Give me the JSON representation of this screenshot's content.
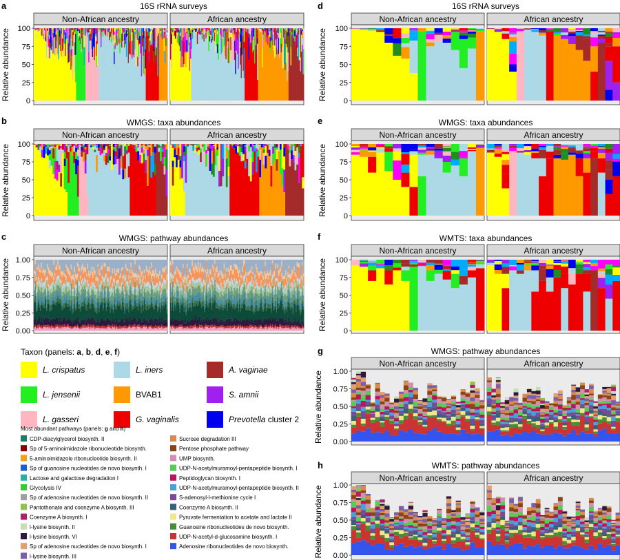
{
  "colors": {
    "L. crispatus": "#ffff00",
    "L. jensenii": "#22ee22",
    "L. gasseri": "#ffb6c1",
    "L. iners": "#add8e6",
    "BVAB1": "#ff9900",
    "G. vaginalis": "#ee0000",
    "A. vaginae": "#a52a2a",
    "S. amnii": "#a020f0",
    "Prevotella cluster 2": "#0000ee",
    "facet_bg": "#d9d9d9",
    "panel_bg": "#ebebeb",
    "grid": "#ffffff"
  },
  "chart_data": [
    {
      "id": "a",
      "type": "bar",
      "stacked": true,
      "letter": "a",
      "title": "16S rRNA surveys",
      "ylabel": "Relative abundance",
      "yticks": [
        "0",
        "25",
        "50",
        "75",
        "100"
      ],
      "ylim": [
        0,
        100
      ],
      "facets": [
        "Non-African ancestry",
        "African ancestry"
      ],
      "description": "One stacked bar per sample, sorted by dominant taxon",
      "segments": [
        {
          "facet": 0,
          "taxon": "L. crispatus",
          "samples": 45
        },
        {
          "facet": 0,
          "taxon": "L. jensenii",
          "samples": 10
        },
        {
          "facet": 0,
          "taxon": "L. gasseri",
          "samples": 14
        },
        {
          "facet": 0,
          "taxon": "L. iners",
          "samples": 50
        },
        {
          "facet": 0,
          "taxon": "G. vaginalis",
          "samples": 14
        },
        {
          "facet": 0,
          "taxon": "BVAB1",
          "samples": 9
        },
        {
          "facet": 1,
          "taxon": "L. crispatus",
          "samples": 22
        },
        {
          "facet": 1,
          "taxon": "L. iners",
          "samples": 56
        },
        {
          "facet": 1,
          "taxon": "G. vaginalis",
          "samples": 14
        },
        {
          "facet": 1,
          "taxon": "BVAB1",
          "samples": 32
        },
        {
          "facet": 1,
          "taxon": "A. vaginae",
          "samples": 16
        }
      ]
    },
    {
      "id": "b",
      "type": "bar",
      "stacked": true,
      "letter": "b",
      "title": "WMGS: taxa abundances",
      "ylabel": "Relative abundance",
      "yticks": [
        "0",
        "25",
        "50",
        "75",
        "100"
      ],
      "ylim": [
        0,
        100
      ],
      "facets": [
        "Non-African ancestry",
        "African ancestry"
      ],
      "segments": [
        {
          "facet": 0,
          "taxon": "L. crispatus",
          "samples": 18
        },
        {
          "facet": 0,
          "taxon": "L. jensenii",
          "samples": 6
        },
        {
          "facet": 0,
          "taxon": "L. gasseri",
          "samples": 5
        },
        {
          "facet": 0,
          "taxon": "L. iners",
          "samples": 22
        },
        {
          "facet": 0,
          "taxon": "G. vaginalis",
          "samples": 14
        },
        {
          "facet": 0,
          "taxon": "A. vaginae",
          "samples": 6
        },
        {
          "facet": 1,
          "taxon": "L. crispatus",
          "samples": 8
        },
        {
          "facet": 1,
          "taxon": "L. iners",
          "samples": 24
        },
        {
          "facet": 1,
          "taxon": "G. vaginalis",
          "samples": 16
        },
        {
          "facet": 1,
          "taxon": "BVAB1",
          "samples": 14
        },
        {
          "facet": 1,
          "taxon": "A. vaginae",
          "samples": 10
        }
      ]
    },
    {
      "id": "c",
      "type": "area",
      "stacked": true,
      "letter": "c",
      "title": "WMGS: pathway abundances",
      "ylabel": "Relative abundance",
      "yticks": [
        "0.00",
        "0.25",
        "0.50",
        "0.75",
        "1.00"
      ],
      "ylim": [
        0,
        1
      ],
      "facets": [
        "Non-African ancestry",
        "African ancestry"
      ]
    },
    {
      "id": "d",
      "type": "bar",
      "stacked": true,
      "letter": "d",
      "title": "16S rRNA surveys",
      "ylabel": "Relative abundance",
      "yticks": [
        "0",
        "25",
        "50",
        "75",
        "100"
      ],
      "ylim": [
        0,
        100
      ],
      "facets": [
        "Non-African ancestry",
        "African ancestry"
      ],
      "samples_per_facet": [
        16,
        18
      ]
    },
    {
      "id": "e",
      "type": "bar",
      "stacked": true,
      "letter": "e",
      "title": "WMGS: taxa abundances",
      "ylabel": "Relative abundance",
      "yticks": [
        "0",
        "25",
        "50",
        "75",
        "100"
      ],
      "ylim": [
        0,
        100
      ],
      "facets": [
        "Non-African ancestry",
        "African ancestry"
      ],
      "samples_per_facet": [
        16,
        18
      ]
    },
    {
      "id": "f",
      "type": "bar",
      "stacked": true,
      "letter": "f",
      "title": "WMTS: taxa abundances",
      "ylabel": "Relative abundance",
      "yticks": [
        "0",
        "25",
        "50",
        "75",
        "100"
      ],
      "ylim": [
        0,
        100
      ],
      "facets": [
        "Non-African ancestry",
        "African ancestry"
      ],
      "samples_per_facet": [
        16,
        18
      ]
    },
    {
      "id": "g",
      "type": "bar",
      "stacked": true,
      "letter": "g",
      "title": "WMGS: pathway abundances",
      "ylabel": "Relative abundance",
      "yticks": [
        "0.00",
        "0.25",
        "0.50",
        "0.75",
        "1.00"
      ],
      "ylim": [
        0,
        1
      ],
      "facets": [
        "Non-African ancestry",
        "African ancestry"
      ],
      "samples_per_facet": [
        16,
        18
      ]
    },
    {
      "id": "h",
      "type": "bar",
      "stacked": true,
      "letter": "h",
      "title": "WMTS: pathway abundances",
      "ylabel": "Relative abundance",
      "yticks": [
        "0.00",
        "0.25",
        "0.50",
        "0.75",
        "1.00"
      ],
      "ylim": [
        0,
        1
      ],
      "facets": [
        "Non-African ancestry",
        "African ancestry"
      ],
      "samples_per_facet": [
        16,
        18
      ]
    }
  ],
  "taxon_legend": {
    "title_prefix": "Taxon (panels: ",
    "title_panels": [
      "a",
      "b",
      "d",
      "e",
      "f"
    ],
    "title_suffix": ")",
    "items": [
      {
        "name": "L. crispatus",
        "italic": "L. crispatus",
        "plain": "",
        "color": "#ffff00"
      },
      {
        "name": "L. jensenii",
        "italic": "L. jensenii",
        "plain": "",
        "color": "#22ee22"
      },
      {
        "name": "L. gasseri",
        "italic": "L. gasseri",
        "plain": "",
        "color": "#ffb6c1"
      },
      {
        "name": "L. iners",
        "italic": "L. iners",
        "plain": "",
        "color": "#add8e6"
      },
      {
        "name": "BVAB1",
        "italic": "",
        "plain": "BVAB1",
        "color": "#ff9900"
      },
      {
        "name": "G. vaginalis",
        "italic": "G. vaginalis",
        "plain": "",
        "color": "#ee0000"
      },
      {
        "name": "A. vaginae",
        "italic": "A. vaginae",
        "plain": "",
        "color": "#a52a2a"
      },
      {
        "name": "S. amnii",
        "italic": "S. amnii",
        "plain": "",
        "color": "#a020f0"
      },
      {
        "name": "Prevotella cluster 2",
        "italic": "Prevotella",
        "plain": " cluster 2",
        "color": "#0000ee"
      }
    ]
  },
  "pathway_legend": {
    "title_prefix": "Most abundant pathways (panels: ",
    "title_g": "g",
    "title_and": " and ",
    "title_h": "h",
    "title_suffix": ")",
    "left": [
      {
        "label": "CDP-diacylglycerol biosynth. II",
        "color": "#1b7f5f"
      },
      {
        "label": "Sp of 5-aminoimidazole ribonucleotide biosynth.",
        "color": "#8b0000"
      },
      {
        "label": "5-aminoimidazole ribonucleotide biosynth. II",
        "color": "#f2a20f"
      },
      {
        "label": "Sp of guanosine nucleotides de novo biosynth. I",
        "color": "#1f5fd0"
      },
      {
        "label": "Lactose and galactose degradation I",
        "color": "#20b5a0"
      },
      {
        "label": "Glycolysis IV",
        "color": "#33cc33"
      },
      {
        "label": "Sp of adenosine nucleotides de novo biosynth. II",
        "color": "#a0a0a0"
      },
      {
        "label": "Pantothenate and coenzyme A biosynth. III",
        "color": "#8ec24a"
      },
      {
        "label": "Coenzyme A biosynth. I",
        "color": "#b0206a"
      },
      {
        "label": "l-lysine biosynth. II",
        "color": "#c9ddb5"
      },
      {
        "label": "l-lysine biosynth. VI",
        "color": "#2b1a3d"
      },
      {
        "label": "Sp of adenosine nucleotides de novo biosynth. I",
        "color": "#e0a070"
      },
      {
        "label": "l-lysine biosynth. III",
        "color": "#7b5fa8"
      }
    ],
    "right": [
      {
        "label": "Sucrose degradation III",
        "color": "#d98a50"
      },
      {
        "label": "Pentose phosphate pathway",
        "color": "#8b4513"
      },
      {
        "label": "UMP biosynth.",
        "color": "#d38fb0"
      },
      {
        "label": "UDP-N-acetylmuramoyl-pentapeptide biosynth. I",
        "color": "#55cc55"
      },
      {
        "label": "Peptidoglycan biosynth. I",
        "color": "#c01060"
      },
      {
        "label": "UDP-N-acetylmuramoyl-pentapeptide biosynth. II",
        "color": "#4aa0d8"
      },
      {
        "label": "S-adenosyl-l-methionine cycle I",
        "color": "#7a4a9a"
      },
      {
        "label": "Coenzyme A biosynth. II",
        "color": "#3a5f78"
      },
      {
        "label": "Pyruvate fermentation to acetate and lactate II",
        "color": "#f0e68c"
      },
      {
        "label": "Guanosine ribonucleotides de novo biosynth.",
        "color": "#4a8c3a"
      },
      {
        "label": "UDP-N-acetyl-d-glucosamine biosynth. I",
        "color": "#cc3333"
      },
      {
        "label": "Adenosine ribonucleotides de novo biosynth.",
        "color": "#3355ee"
      }
    ]
  }
}
